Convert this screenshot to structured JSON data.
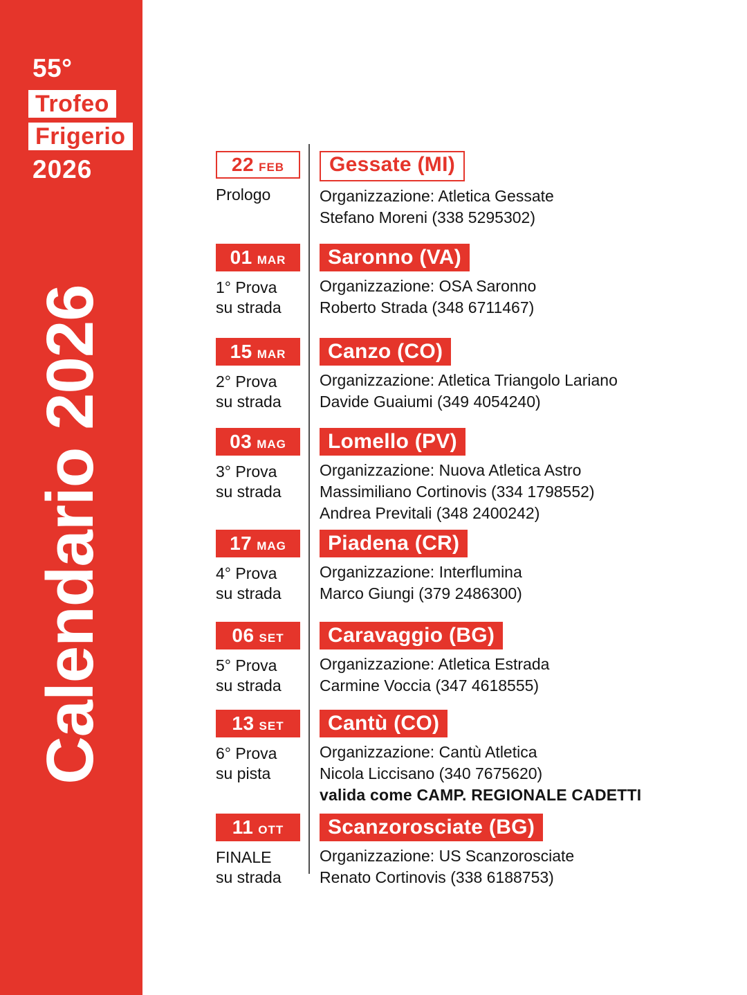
{
  "colors": {
    "red": "#E5352B",
    "text": "#141414",
    "divider": "#4F4F4F",
    "background": "#FFFFFF"
  },
  "sidebar": {
    "edition": "55°",
    "title_line1": "Trofeo",
    "title_line2": "Frigerio",
    "year": "2026",
    "vertical_title": "Calendario 2026"
  },
  "events": [
    {
      "date_day": "22",
      "date_month": "FEB",
      "stage_lines": [
        "Prologo"
      ],
      "location": "Gessate (MI)",
      "info_lines": [
        "Organizzazione: Atletica Gessate",
        "Stefano Moreni (338 5295302)"
      ]
    },
    {
      "date_day": "01",
      "date_month": "MAR",
      "stage_lines": [
        "1° Prova",
        "su strada"
      ],
      "location": "Saronno (VA)",
      "info_lines": [
        "Organizzazione: OSA Saronno",
        "Roberto Strada (348 6711467)"
      ]
    },
    {
      "date_day": "15",
      "date_month": "MAR",
      "stage_lines": [
        "2° Prova",
        "su strada"
      ],
      "location": "Canzo (CO)",
      "info_lines": [
        "Organizzazione: Atletica Triangolo Lariano",
        "Davide Guaiumi (349 4054240)"
      ]
    },
    {
      "date_day": "03",
      "date_month": "MAG",
      "stage_lines": [
        "3° Prova",
        "su strada"
      ],
      "location": "Lomello (PV)",
      "info_lines": [
        "Organizzazione: Nuova Atletica Astro",
        "Massimiliano Cortinovis (334 1798552)",
        "Andrea Previtali (348 2400242)"
      ]
    },
    {
      "date_day": "17",
      "date_month": "MAG",
      "stage_lines": [
        "4° Prova",
        "su strada"
      ],
      "location": "Piadena (CR)",
      "info_lines": [
        "Organizzazione: Interflumina",
        "Marco Giungi (379 2486300)"
      ]
    },
    {
      "date_day": "06",
      "date_month": "SET",
      "stage_lines": [
        "5° Prova",
        "su strada"
      ],
      "location": "Caravaggio (BG)",
      "info_lines": [
        "Organizzazione: Atletica Estrada",
        "Carmine Voccia (347 4618555)"
      ]
    },
    {
      "date_day": "13",
      "date_month": "SET",
      "stage_lines": [
        "6° Prova",
        "su pista"
      ],
      "location": "Cantù (CO)",
      "info_lines": [
        "Organizzazione: Cantù Atletica",
        "Nicola Liccisano (340 7675620)"
      ],
      "note": "valida come CAMP. REGIONALE CADETTI"
    },
    {
      "date_day": "11",
      "date_month": "OTT",
      "stage_lines": [
        "FINALE",
        "su strada"
      ],
      "location": "Scanzorosciate (BG)",
      "info_lines": [
        "Organizzazione: US Scanzorosciate",
        "Renato Cortinovis (338 6188753)"
      ]
    }
  ]
}
